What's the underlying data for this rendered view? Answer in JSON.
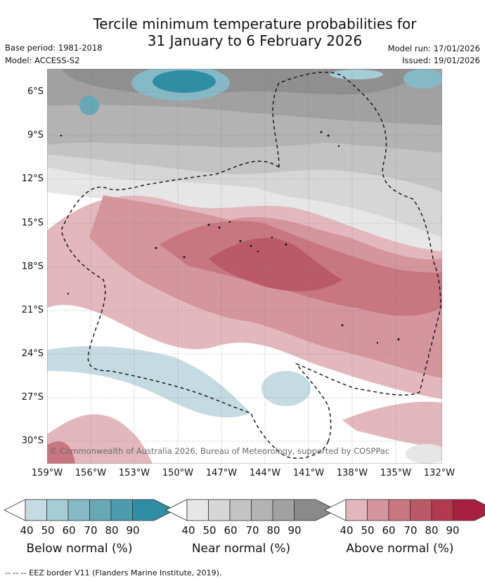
{
  "header": {
    "title_line1": "Tercile minimum temperature probabilities for",
    "title_line2": "31 January to 6 February 2026",
    "base_period": "Base period: 1981-2018",
    "model": "Model: ACCESS-S2",
    "model_run": "Model run: 17/01/2026",
    "issued": "Issued: 19/01/2026"
  },
  "map": {
    "lat_labels": [
      "6°S",
      "9°S",
      "12°S",
      "15°S",
      "18°S",
      "21°S",
      "24°S",
      "27°S",
      "30°S"
    ],
    "lon_labels": [
      "159°W",
      "156°W",
      "153°W",
      "150°W",
      "147°W",
      "144°W",
      "141°W",
      "138°W",
      "135°W",
      "132°W"
    ],
    "copyright": "© Commonwealth of Australia 2026, Bureau of Meteorology, supported by COSPPac"
  },
  "colorbars": [
    {
      "label": "Below normal (%)",
      "ticks": [
        "40",
        "50",
        "60",
        "70",
        "80",
        "90"
      ],
      "colors": [
        "#c5dbe2",
        "#a6ccd6",
        "#86b9c6",
        "#67a8b7",
        "#4b9cae",
        "#2f8ea3"
      ]
    },
    {
      "label": "Near normal (%)",
      "ticks": [
        "40",
        "50",
        "60",
        "70",
        "80",
        "90"
      ],
      "colors": [
        "#e6e6e6",
        "#d6d6d6",
        "#c3c3c3",
        "#b3b3b3",
        "#a1a1a1",
        "#8a8a8a"
      ]
    },
    {
      "label": "Above normal (%)",
      "ticks": [
        "40",
        "50",
        "60",
        "70",
        "80",
        "90"
      ],
      "colors": [
        "#e2b8be",
        "#d4959c",
        "#c87680",
        "#bb5a67",
        "#b33a4e",
        "#a82040"
      ]
    }
  ],
  "footnote": "-- -- -- EEZ border V11 (Flanders Marine Institute, 2019)."
}
